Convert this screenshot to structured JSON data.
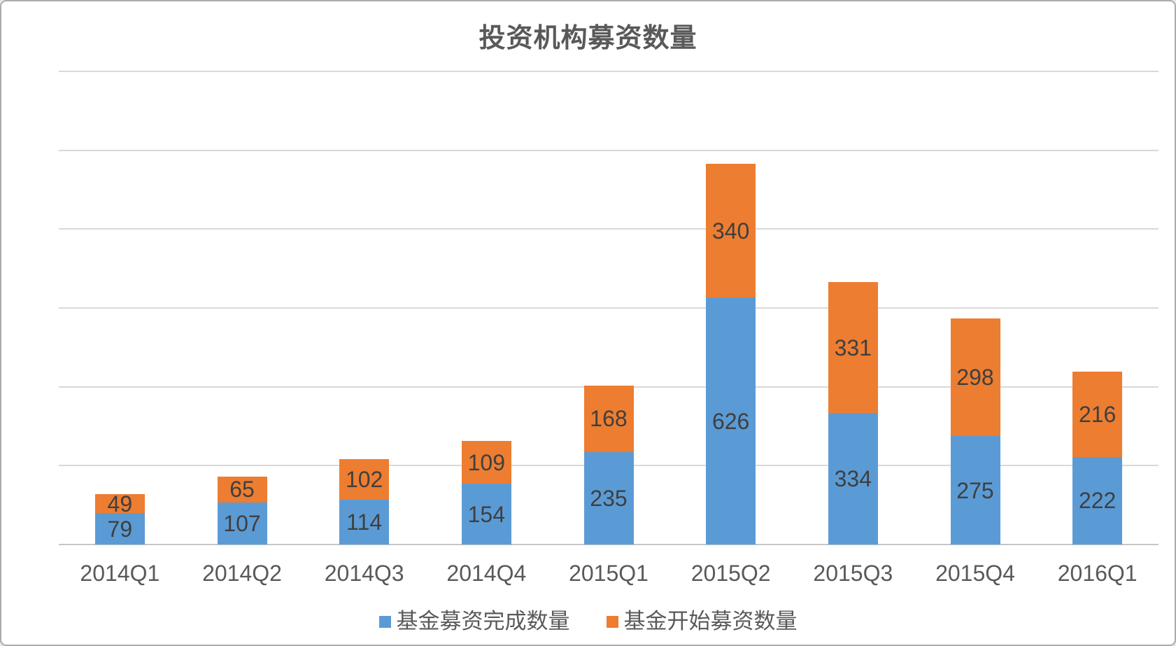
{
  "chart_data": {
    "type": "bar",
    "stacked": true,
    "title": "投资机构募资数量",
    "categories": [
      "2014Q1",
      "2014Q2",
      "2014Q3",
      "2014Q4",
      "2015Q1",
      "2015Q2",
      "2015Q3",
      "2015Q4",
      "2016Q1"
    ],
    "series": [
      {
        "name": "基金募资完成数量",
        "color": "#5b9bd5",
        "values": [
          79,
          107,
          114,
          154,
          235,
          626,
          334,
          275,
          222
        ]
      },
      {
        "name": "基金开始募资数量",
        "color": "#ed7d31",
        "values": [
          49,
          65,
          102,
          109,
          168,
          340,
          331,
          298,
          216
        ]
      }
    ],
    "y_axis": {
      "min": 0,
      "max": 1200,
      "tick_step": 200,
      "ticks": [
        0,
        200,
        400,
        600,
        800,
        1000,
        1200
      ]
    },
    "xlabel": "",
    "ylabel": "",
    "grid": true,
    "legend_position": "bottom",
    "colors": {
      "grid_line": "#d9d9d9",
      "axis_line": "#c6c6c6",
      "axis_text": "#595959",
      "value_label_text": "#3f3f3f",
      "title_text": "#595959",
      "frame_border": "#ababab",
      "background": "#ffffff"
    }
  }
}
